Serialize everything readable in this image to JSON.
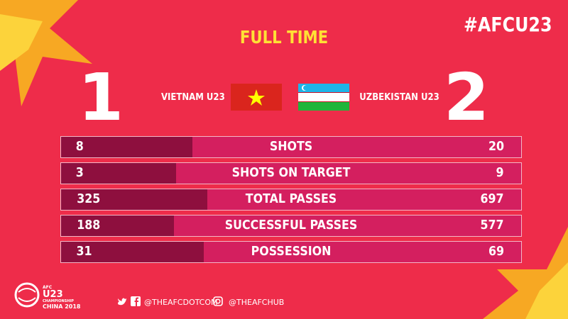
{
  "header": {
    "status": "FULL TIME",
    "hashtag": "#AFCU23"
  },
  "home": {
    "name": "VIETNAM U23",
    "score": "1",
    "flag_colors": [
      "#da251d",
      "#ffff00"
    ]
  },
  "away": {
    "name": "UZBEKISTAN U23",
    "score": "2",
    "flag_colors": [
      "#1eb5e8",
      "#ffffff",
      "#1eb53a",
      "#ce1126"
    ]
  },
  "colors": {
    "background": "#ee2c4a",
    "bar": "#d41f5f",
    "home_fill": "#8e0f3e",
    "title": "#ffe135"
  },
  "stats": [
    {
      "label": "SHOTS",
      "home": 8,
      "away": 20
    },
    {
      "label": "SHOTS ON TARGET",
      "home": 3,
      "away": 9
    },
    {
      "label": "TOTAL PASSES",
      "home": 325,
      "away": 697
    },
    {
      "label": "SUCCESSFUL PASSES",
      "home": 188,
      "away": 577
    },
    {
      "label": "POSSESSION",
      "home": 31,
      "away": 69
    }
  ],
  "footer": {
    "logo_text": [
      "AFC",
      "U23",
      "CHAMPIONSHIP",
      "CHINA 2018"
    ],
    "facebook_twitter": "@THEAFCDOTCOM",
    "instagram": "@THEAFCHUB"
  }
}
